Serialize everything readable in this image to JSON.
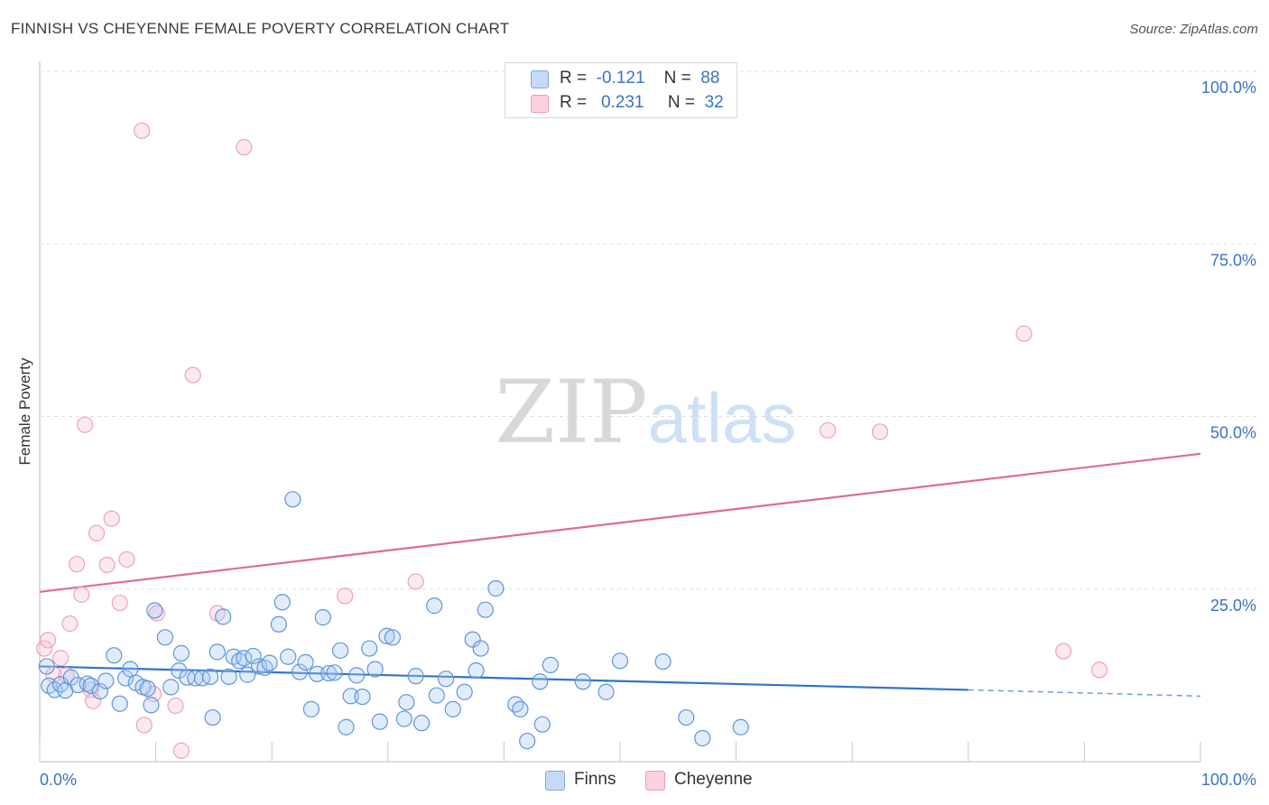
{
  "header": {
    "title": "FINNISH VS CHEYENNE FEMALE POVERTY CORRELATION CHART",
    "source": "Source: ZipAtlas.com"
  },
  "watermark": {
    "zip": "ZIP",
    "atlas": "atlas"
  },
  "legend": {
    "rows": [
      {
        "r_label": "R =",
        "r_value": "-0.121",
        "n_label": "N =",
        "n_value": "88",
        "color": "#a9c8f0"
      },
      {
        "r_label": "R =",
        "r_value": "0.231",
        "n_label": "N =",
        "n_value": "32",
        "color": "#f7bcd0"
      }
    ]
  },
  "bottom_legend": [
    {
      "label": "Finns",
      "color": "#a9c8f0"
    },
    {
      "label": "Cheyenne",
      "color": "#f7bcd0"
    }
  ],
  "chart_data": {
    "type": "scatter",
    "title": "FINNISH VS CHEYENNE FEMALE POVERTY CORRELATION CHART",
    "xlabel": "",
    "ylabel": "Female Poverty",
    "xlim": [
      0,
      100
    ],
    "ylim": [
      0,
      100
    ],
    "x_tick_labels": [
      "0.0%",
      "100.0%"
    ],
    "y_tick_labels": [
      "25.0%",
      "50.0%",
      "75.0%",
      "100.0%"
    ],
    "y_ticks": [
      25,
      50,
      75,
      100
    ],
    "grid": true,
    "colors": {
      "finns": "#4a86d8",
      "cheyenne": "#e8739a",
      "finns_line": "#2f73cc",
      "cheyenne_line": "#e06a93"
    },
    "series": [
      {
        "name": "Finns",
        "trend": {
          "x0": 0,
          "y0": 13.8,
          "x1": 80,
          "y1": 10.4,
          "dashed_to_x": 100,
          "dashed_to_y": 9.5
        },
        "points": [
          [
            0.6,
            13.8
          ],
          [
            0.8,
            11.0
          ],
          [
            1.3,
            10.4
          ],
          [
            1.8,
            11.2
          ],
          [
            2.2,
            10.3
          ],
          [
            2.7,
            12.2
          ],
          [
            3.3,
            11.1
          ],
          [
            4.1,
            11.3
          ],
          [
            4.4,
            11.0
          ],
          [
            5.2,
            10.2
          ],
          [
            5.7,
            11.7
          ],
          [
            6.4,
            15.4
          ],
          [
            6.9,
            8.4
          ],
          [
            7.4,
            12.1
          ],
          [
            7.8,
            13.4
          ],
          [
            8.3,
            11.4
          ],
          [
            8.9,
            10.8
          ],
          [
            9.3,
            10.6
          ],
          [
            9.6,
            8.2
          ],
          [
            9.9,
            21.9
          ],
          [
            10.8,
            18.0
          ],
          [
            11.3,
            10.8
          ],
          [
            12.0,
            13.2
          ],
          [
            12.2,
            15.7
          ],
          [
            12.7,
            12.2
          ],
          [
            13.4,
            12.1
          ],
          [
            14.0,
            12.1
          ],
          [
            14.7,
            12.3
          ],
          [
            14.9,
            6.4
          ],
          [
            15.3,
            15.9
          ],
          [
            15.8,
            21.0
          ],
          [
            16.3,
            12.3
          ],
          [
            16.7,
            15.2
          ],
          [
            17.2,
            14.6
          ],
          [
            17.6,
            15.0
          ],
          [
            17.9,
            12.6
          ],
          [
            18.4,
            15.3
          ],
          [
            18.9,
            13.8
          ],
          [
            19.4,
            13.6
          ],
          [
            19.8,
            14.3
          ],
          [
            20.6,
            19.9
          ],
          [
            20.9,
            23.1
          ],
          [
            21.4,
            15.2
          ],
          [
            21.8,
            38.0
          ],
          [
            22.4,
            13.0
          ],
          [
            22.9,
            14.4
          ],
          [
            23.4,
            7.6
          ],
          [
            23.9,
            12.7
          ],
          [
            24.4,
            20.9
          ],
          [
            24.9,
            12.8
          ],
          [
            25.4,
            12.9
          ],
          [
            25.9,
            16.1
          ],
          [
            26.4,
            5.0
          ],
          [
            26.8,
            9.5
          ],
          [
            27.3,
            12.5
          ],
          [
            27.8,
            9.4
          ],
          [
            28.4,
            16.4
          ],
          [
            28.9,
            13.4
          ],
          [
            29.3,
            5.8
          ],
          [
            29.9,
            18.2
          ],
          [
            30.4,
            18.0
          ],
          [
            31.4,
            6.2
          ],
          [
            31.6,
            8.6
          ],
          [
            32.4,
            12.4
          ],
          [
            32.9,
            5.6
          ],
          [
            34.0,
            22.6
          ],
          [
            34.2,
            9.6
          ],
          [
            35.0,
            12.0
          ],
          [
            35.6,
            7.6
          ],
          [
            36.6,
            10.1
          ],
          [
            37.3,
            17.7
          ],
          [
            37.6,
            13.2
          ],
          [
            38.0,
            16.4
          ],
          [
            38.4,
            22.0
          ],
          [
            39.3,
            25.1
          ],
          [
            41.0,
            8.3
          ],
          [
            41.4,
            7.6
          ],
          [
            42.0,
            3.0
          ],
          [
            43.1,
            11.6
          ],
          [
            43.3,
            5.4
          ],
          [
            44.0,
            14.0
          ],
          [
            46.8,
            11.6
          ],
          [
            48.8,
            10.1
          ],
          [
            50.0,
            14.6
          ],
          [
            53.7,
            14.5
          ],
          [
            55.7,
            6.4
          ],
          [
            57.1,
            3.4
          ],
          [
            60.4,
            5.0
          ]
        ]
      },
      {
        "name": "Cheyenne",
        "trend": {
          "x0": 0,
          "y0": 24.6,
          "x1": 100,
          "y1": 44.6
        },
        "points": [
          [
            0.4,
            16.4
          ],
          [
            0.7,
            17.6
          ],
          [
            1.2,
            12.6
          ],
          [
            1.8,
            15.0
          ],
          [
            2.3,
            12.5
          ],
          [
            2.6,
            20.0
          ],
          [
            3.2,
            28.6
          ],
          [
            3.6,
            24.2
          ],
          [
            3.9,
            48.8
          ],
          [
            4.4,
            10.4
          ],
          [
            4.6,
            8.8
          ],
          [
            4.9,
            33.1
          ],
          [
            5.8,
            28.5
          ],
          [
            6.2,
            35.2
          ],
          [
            6.9,
            23.0
          ],
          [
            7.5,
            29.3
          ],
          [
            8.8,
            91.4
          ],
          [
            9.0,
            5.3
          ],
          [
            9.8,
            9.8
          ],
          [
            10.1,
            21.5
          ],
          [
            11.7,
            8.1
          ],
          [
            12.2,
            1.6
          ],
          [
            13.2,
            56.0
          ],
          [
            15.3,
            21.5
          ],
          [
            17.6,
            89.0
          ],
          [
            26.3,
            24.0
          ],
          [
            32.4,
            26.1
          ],
          [
            67.9,
            48.0
          ],
          [
            72.4,
            47.8
          ],
          [
            84.8,
            62.0
          ],
          [
            88.2,
            16.0
          ],
          [
            91.3,
            13.3
          ]
        ]
      }
    ]
  }
}
